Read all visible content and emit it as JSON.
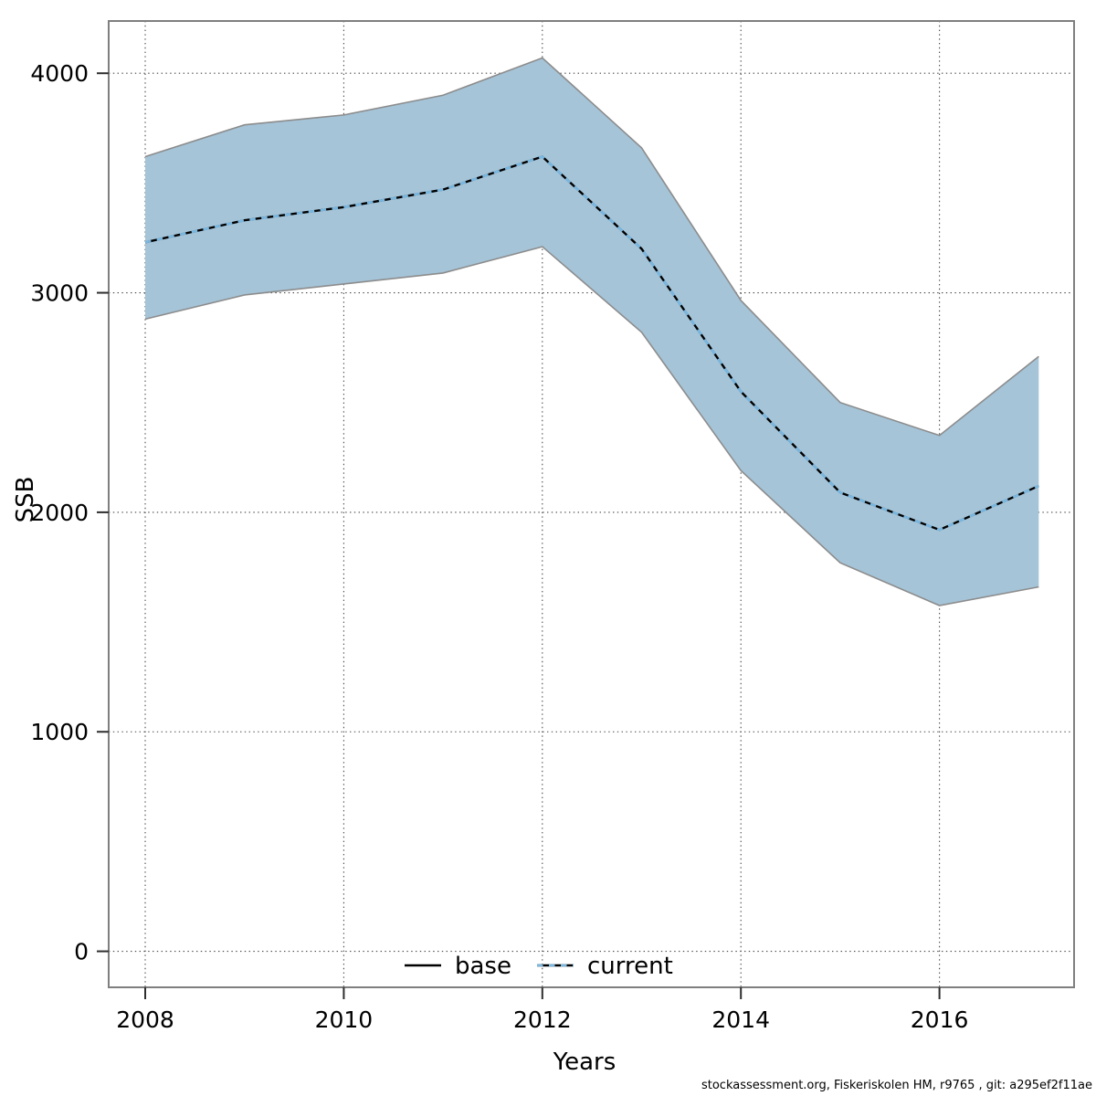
{
  "chart_data": {
    "type": "line",
    "title": "",
    "xlabel": "Years",
    "ylabel": "SSB",
    "x": [
      2008,
      2009,
      2010,
      2011,
      2012,
      2013,
      2014,
      2015,
      2016,
      2017
    ],
    "series": [
      {
        "name": "base",
        "style": "solid",
        "color": "#000000",
        "width": 2.4,
        "values": [
          3230,
          3330,
          3390,
          3470,
          3620,
          3200,
          2550,
          2090,
          1920,
          2120
        ]
      },
      {
        "name": "current",
        "style": "dashed",
        "color": "#79B7E0",
        "width": 2.6,
        "values": [
          3230,
          3330,
          3390,
          3470,
          3620,
          3200,
          2550,
          2090,
          1920,
          2120
        ]
      }
    ],
    "band": {
      "belongs_to": "current",
      "fill": "#A5C4D8",
      "edge_color": "#8c8c8c",
      "lower": [
        2880,
        2990,
        3040,
        3090,
        3210,
        2820,
        2190,
        1770,
        1575,
        1660
      ],
      "upper": [
        3620,
        3765,
        3810,
        3900,
        4070,
        3660,
        2965,
        2500,
        2350,
        2710
      ]
    },
    "x_ticks": [
      2008,
      2010,
      2012,
      2014,
      2016
    ],
    "y_ticks": [
      0,
      1000,
      2000,
      3000,
      4000
    ],
    "xlim": [
      2007.632,
      2017.356
    ],
    "ylim": [
      -164,
      4238
    ],
    "grid": "dotted",
    "legend_position": "bottom-center-inside"
  },
  "axes": {
    "x_label": "Years",
    "y_label": "SSB"
  },
  "legend": {
    "items": [
      {
        "label": "base"
      },
      {
        "label": "current"
      }
    ]
  },
  "footer": {
    "credit": "stockassessment.org, Fiskeriskolen HM, r9765 , git: a295ef2f11ae"
  }
}
